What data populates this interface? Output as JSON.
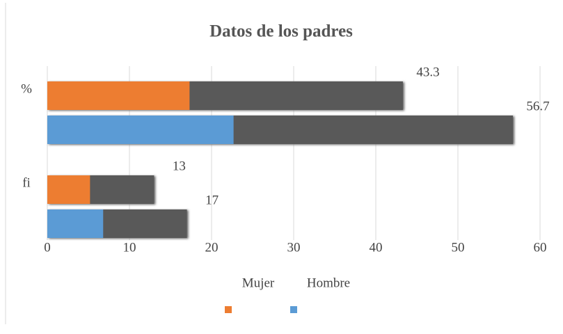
{
  "chart_data": {
    "type": "hbar3d",
    "title": "Datos de los padres",
    "categories": [
      "%",
      "fi"
    ],
    "series": [
      {
        "name": "Mujer",
        "color": "#ed7d31",
        "values": [
          43.3,
          13
        ]
      },
      {
        "name": "Hombre",
        "color": "#5b9bd5",
        "values": [
          56.7,
          17
        ]
      }
    ],
    "xlim": [
      0,
      60
    ],
    "xticks": [
      0,
      10,
      20,
      30,
      40,
      50,
      60
    ],
    "grid": true,
    "legend": "bottom"
  }
}
